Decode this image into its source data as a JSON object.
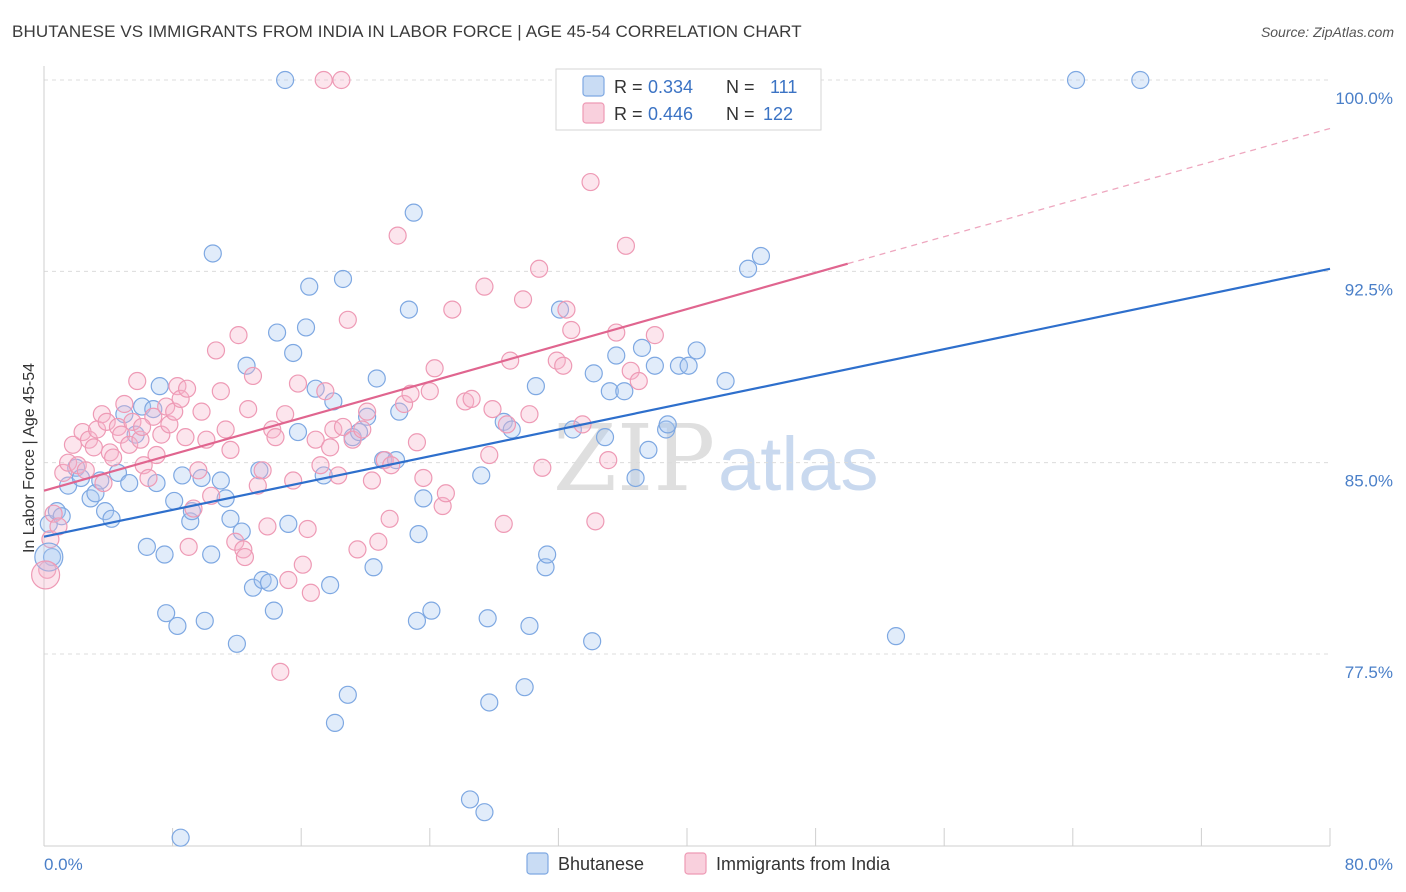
{
  "title": "BHUTANESE VS IMMIGRANTS FROM INDIA IN LABOR FORCE | AGE 45-54 CORRELATION CHART",
  "source": "Source: ZipAtlas.com",
  "watermark": {
    "part1": "ZIP",
    "part2": "atlas"
  },
  "legend": {
    "rows": [
      {
        "r_label": "R =",
        "r_value": "0.334",
        "n_label": "N =",
        "n_value": "111"
      },
      {
        "r_label": "R =",
        "r_value": "0.446",
        "n_label": "N =",
        "n_value": "122"
      }
    ]
  },
  "bottom_legend": [
    "Bhutanese",
    "Immigrants from India"
  ],
  "chart_data": {
    "type": "scatter",
    "xlabel": "",
    "ylabel": "In Labor Force | Age 45-54",
    "xlim": [
      0,
      80
    ],
    "ylim": [
      70,
      100.6
    ],
    "x_tick_labels": [
      "0.0%",
      "80.0%"
    ],
    "y_ticks": [
      77.5,
      85.0,
      92.5,
      100.0
    ],
    "y_tick_labels": [
      "77.5%",
      "85.0%",
      "92.5%",
      "100.0%"
    ],
    "grid": true,
    "legend_position": "top-center",
    "series": [
      {
        "name": "Bhutanese",
        "color": "#6fa0e0",
        "line_color": "#2e6fcc",
        "r": 0.334,
        "n": 111,
        "trend": {
          "x0": 0,
          "y0": 82.1,
          "x1": 80,
          "y1": 92.6
        },
        "points": [
          [
            0.3,
            82.6
          ],
          [
            0.5,
            81.3
          ],
          [
            0.8,
            83.1
          ],
          [
            1.1,
            82.9
          ],
          [
            1.5,
            84.1
          ],
          [
            2.0,
            84.8
          ],
          [
            2.3,
            84.4
          ],
          [
            2.9,
            83.6
          ],
          [
            3.2,
            83.8
          ],
          [
            3.5,
            84.3
          ],
          [
            3.8,
            83.1
          ],
          [
            4.2,
            82.8
          ],
          [
            4.6,
            84.6
          ],
          [
            5.0,
            86.9
          ],
          [
            5.3,
            84.2
          ],
          [
            5.7,
            86.1
          ],
          [
            6.1,
            87.2
          ],
          [
            6.4,
            81.7
          ],
          [
            6.8,
            87.1
          ],
          [
            7.0,
            84.2
          ],
          [
            7.2,
            88.0
          ],
          [
            7.5,
            81.4
          ],
          [
            7.6,
            79.1
          ],
          [
            8.1,
            83.5
          ],
          [
            8.3,
            78.6
          ],
          [
            8.5,
            70.3
          ],
          [
            8.6,
            84.5
          ],
          [
            9.1,
            82.7
          ],
          [
            9.2,
            83.1
          ],
          [
            9.8,
            84.4
          ],
          [
            10.0,
            78.8
          ],
          [
            10.4,
            81.4
          ],
          [
            10.5,
            93.2
          ],
          [
            11.0,
            84.3
          ],
          [
            11.3,
            83.6
          ],
          [
            11.6,
            82.8
          ],
          [
            12.0,
            77.9
          ],
          [
            12.3,
            82.3
          ],
          [
            12.6,
            88.8
          ],
          [
            13.0,
            80.1
          ],
          [
            13.4,
            84.7
          ],
          [
            13.6,
            80.4
          ],
          [
            14.0,
            80.3
          ],
          [
            14.3,
            79.2
          ],
          [
            14.5,
            90.1
          ],
          [
            15.0,
            100.0
          ],
          [
            15.2,
            82.6
          ],
          [
            15.5,
            89.3
          ],
          [
            15.8,
            86.2
          ],
          [
            16.3,
            90.3
          ],
          [
            16.5,
            91.9
          ],
          [
            16.9,
            87.9
          ],
          [
            17.4,
            84.5
          ],
          [
            17.8,
            80.2
          ],
          [
            18.0,
            87.4
          ],
          [
            18.1,
            74.8
          ],
          [
            18.6,
            92.2
          ],
          [
            18.9,
            75.9
          ],
          [
            19.2,
            86.0
          ],
          [
            19.6,
            86.2
          ],
          [
            20.1,
            86.8
          ],
          [
            20.5,
            80.9
          ],
          [
            20.7,
            88.3
          ],
          [
            21.1,
            85.1
          ],
          [
            21.9,
            85.1
          ],
          [
            22.1,
            87.0
          ],
          [
            22.7,
            91.0
          ],
          [
            23.0,
            94.8
          ],
          [
            23.2,
            78.8
          ],
          [
            23.3,
            82.2
          ],
          [
            23.6,
            83.6
          ],
          [
            24.1,
            79.2
          ],
          [
            26.5,
            71.8
          ],
          [
            27.2,
            84.5
          ],
          [
            27.4,
            71.3
          ],
          [
            27.6,
            78.9
          ],
          [
            27.7,
            75.6
          ],
          [
            28.6,
            86.6
          ],
          [
            29.1,
            86.3
          ],
          [
            29.9,
            76.2
          ],
          [
            30.2,
            78.6
          ],
          [
            30.6,
            88.0
          ],
          [
            31.2,
            80.9
          ],
          [
            31.3,
            81.4
          ],
          [
            32.1,
            91.0
          ],
          [
            32.9,
            86.3
          ],
          [
            34.1,
            78.0
          ],
          [
            34.2,
            88.5
          ],
          [
            34.9,
            86.0
          ],
          [
            35.2,
            87.8
          ],
          [
            35.6,
            89.2
          ],
          [
            36.1,
            87.8
          ],
          [
            36.8,
            84.4
          ],
          [
            37.2,
            89.5
          ],
          [
            37.6,
            85.5
          ],
          [
            38.0,
            88.8
          ],
          [
            38.7,
            86.3
          ],
          [
            38.8,
            86.5
          ],
          [
            39.5,
            88.8
          ],
          [
            40.1,
            88.8
          ],
          [
            40.6,
            89.4
          ],
          [
            42.4,
            88.2
          ],
          [
            43.8,
            92.6
          ],
          [
            44.6,
            93.1
          ],
          [
            53.0,
            78.2
          ],
          [
            64.2,
            100.0
          ],
          [
            68.2,
            100.0
          ]
        ]
      },
      {
        "name": "Immigrants from India",
        "color": "#f09ab6",
        "line_color": "#e0658f",
        "r": 0.446,
        "n": 122,
        "trend": {
          "x0": 0,
          "y0": 83.9,
          "x1": 50,
          "y1": 92.8
        },
        "trend_dashed": {
          "x0": 50,
          "y0": 92.8,
          "x1": 80,
          "y1": 98.1
        },
        "points": [
          [
            0.2,
            80.8
          ],
          [
            0.4,
            82.0
          ],
          [
            0.6,
            83.0
          ],
          [
            0.9,
            82.5
          ],
          [
            1.2,
            84.6
          ],
          [
            1.5,
            85.0
          ],
          [
            1.8,
            85.7
          ],
          [
            2.1,
            84.9
          ],
          [
            2.4,
            86.2
          ],
          [
            2.6,
            84.7
          ],
          [
            2.8,
            85.9
          ],
          [
            3.1,
            85.6
          ],
          [
            3.3,
            86.3
          ],
          [
            3.6,
            86.9
          ],
          [
            3.9,
            86.6
          ],
          [
            4.1,
            85.4
          ],
          [
            4.3,
            85.2
          ],
          [
            4.6,
            86.4
          ],
          [
            4.8,
            86.1
          ],
          [
            5.0,
            87.3
          ],
          [
            5.3,
            85.7
          ],
          [
            5.5,
            86.6
          ],
          [
            5.8,
            88.2
          ],
          [
            6.0,
            85.9
          ],
          [
            6.2,
            84.9
          ],
          [
            6.5,
            84.4
          ],
          [
            6.8,
            86.8
          ],
          [
            7.0,
            85.3
          ],
          [
            7.3,
            86.1
          ],
          [
            7.6,
            87.2
          ],
          [
            7.8,
            86.5
          ],
          [
            8.1,
            87.0
          ],
          [
            8.3,
            88.0
          ],
          [
            8.5,
            87.5
          ],
          [
            8.8,
            86.0
          ],
          [
            9.0,
            81.7
          ],
          [
            9.3,
            83.2
          ],
          [
            9.6,
            84.7
          ],
          [
            9.8,
            87.0
          ],
          [
            10.1,
            85.9
          ],
          [
            10.4,
            83.7
          ],
          [
            10.7,
            89.4
          ],
          [
            11.0,
            87.8
          ],
          [
            11.3,
            86.3
          ],
          [
            11.6,
            85.5
          ],
          [
            11.9,
            81.9
          ],
          [
            12.1,
            90.0
          ],
          [
            12.4,
            81.6
          ],
          [
            12.7,
            87.1
          ],
          [
            13.0,
            88.4
          ],
          [
            13.3,
            84.1
          ],
          [
            13.6,
            84.7
          ],
          [
            13.9,
            82.5
          ],
          [
            14.2,
            86.3
          ],
          [
            14.4,
            86.0
          ],
          [
            14.7,
            76.8
          ],
          [
            15.0,
            86.9
          ],
          [
            15.2,
            80.4
          ],
          [
            15.5,
            84.3
          ],
          [
            15.8,
            88.1
          ],
          [
            16.1,
            81.0
          ],
          [
            16.4,
            82.4
          ],
          [
            16.6,
            79.9
          ],
          [
            16.9,
            85.9
          ],
          [
            17.2,
            84.9
          ],
          [
            17.5,
            87.8
          ],
          [
            17.8,
            85.6
          ],
          [
            18.0,
            86.3
          ],
          [
            18.3,
            84.5
          ],
          [
            18.6,
            86.4
          ],
          [
            18.9,
            90.6
          ],
          [
            19.2,
            85.9
          ],
          [
            19.5,
            81.6
          ],
          [
            19.8,
            86.3
          ],
          [
            20.1,
            87.0
          ],
          [
            20.4,
            84.3
          ],
          [
            20.8,
            81.9
          ],
          [
            21.2,
            85.1
          ],
          [
            21.6,
            84.9
          ],
          [
            22.0,
            93.9
          ],
          [
            22.4,
            87.3
          ],
          [
            22.8,
            87.7
          ],
          [
            23.2,
            85.8
          ],
          [
            23.6,
            84.4
          ],
          [
            24.0,
            87.8
          ],
          [
            24.3,
            88.7
          ],
          [
            24.8,
            83.3
          ],
          [
            25.0,
            83.8
          ],
          [
            25.4,
            91.0
          ],
          [
            26.2,
            87.4
          ],
          [
            26.6,
            87.5
          ],
          [
            27.4,
            91.9
          ],
          [
            27.9,
            87.1
          ],
          [
            28.6,
            82.6
          ],
          [
            28.8,
            86.5
          ],
          [
            29.0,
            89.0
          ],
          [
            29.8,
            91.4
          ],
          [
            30.2,
            86.9
          ],
          [
            30.8,
            92.6
          ],
          [
            31.9,
            89.0
          ],
          [
            32.3,
            88.8
          ],
          [
            32.5,
            91.0
          ],
          [
            32.8,
            90.2
          ],
          [
            33.5,
            86.5
          ],
          [
            34.0,
            96.0
          ],
          [
            34.3,
            82.7
          ],
          [
            35.6,
            90.1
          ],
          [
            36.2,
            93.5
          ],
          [
            36.5,
            88.6
          ],
          [
            17.4,
            100.0
          ],
          [
            18.5,
            100.0
          ],
          [
            27.7,
            85.3
          ],
          [
            35.1,
            85.1
          ],
          [
            31.0,
            84.8
          ],
          [
            21.5,
            82.8
          ],
          [
            12.5,
            81.3
          ],
          [
            3.7,
            84.2
          ],
          [
            6.1,
            86.4
          ],
          [
            8.9,
            87.9
          ],
          [
            37.0,
            88.2
          ],
          [
            38.0,
            90.0
          ]
        ]
      }
    ]
  }
}
